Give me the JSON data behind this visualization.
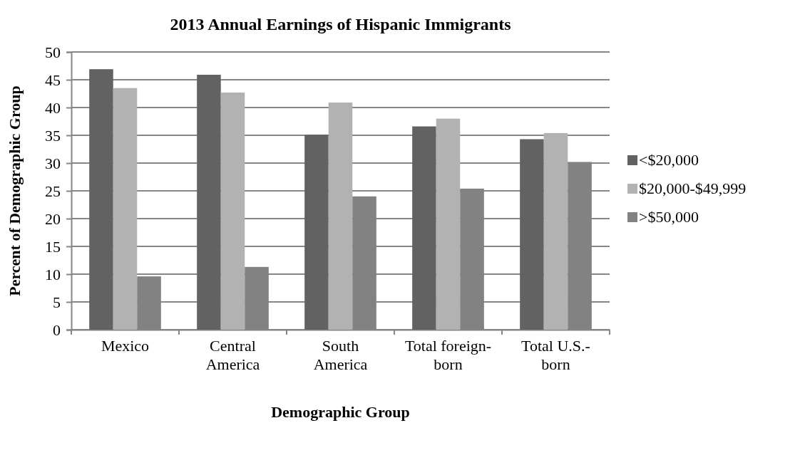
{
  "chart_data": {
    "type": "bar",
    "title": "2013 Annual Earnings of Hispanic Immigrants",
    "xlabel": "Demographic Group",
    "ylabel": "Percent of Demographic Group",
    "categories": [
      "Mexico",
      "Central America",
      "South America",
      "Total foreign-born",
      "Total U.S.-born"
    ],
    "series": [
      {
        "name": "<$20,000",
        "color": "#626262",
        "values": [
          46.9,
          45.9,
          35.1,
          36.6,
          34.3
        ]
      },
      {
        "name": "$20,000-$49,999",
        "color": "#b2b2b2",
        "values": [
          43.5,
          42.7,
          40.9,
          38.0,
          35.4
        ]
      },
      {
        "name": ">$50,000",
        "color": "#828282",
        "values": [
          9.6,
          11.3,
          24.0,
          25.4,
          30.2
        ]
      }
    ],
    "ylim": [
      0,
      50
    ],
    "yticks": [
      0,
      5,
      10,
      15,
      20,
      25,
      30,
      35,
      40,
      45,
      50
    ],
    "grid": "y",
    "legend": "right"
  }
}
